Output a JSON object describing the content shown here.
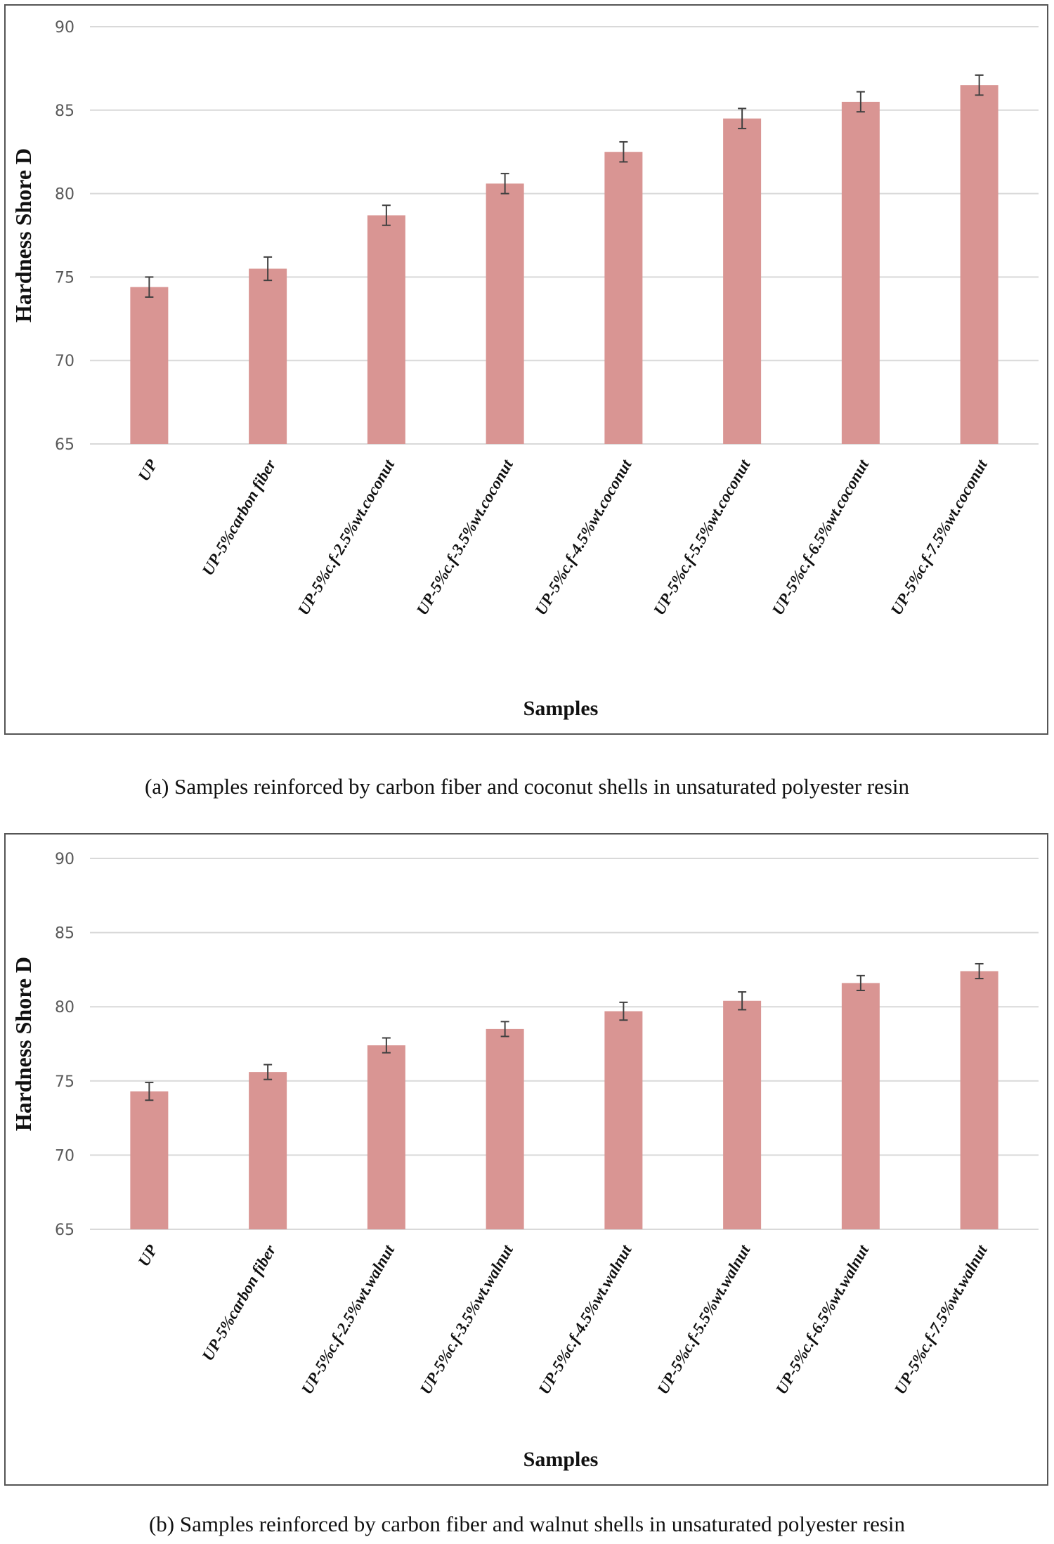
{
  "colors": {
    "bar": "#d99593",
    "grid": "#d9d9d9",
    "error": "#404040",
    "tick": "#595959"
  },
  "chart_data": [
    {
      "type": "bar",
      "title": "",
      "xlabel": "Samples",
      "ylabel": "Hardness Shore D",
      "ylim": [
        65,
        90
      ],
      "yticks": [
        65,
        70,
        75,
        80,
        85,
        90
      ],
      "grid": true,
      "categories": [
        "UP",
        "UP-5%carbon fiber",
        "UP-5%c.f-2.5%wt.coconut",
        "UP-5%c.f-3.5%wt.coconut",
        "UP-5%c.f-4.5%wt.coconut",
        "UP-5%c.f-5.5%wt.coconut",
        "UP-5%c.f-6.5%wt.coconut",
        "UP-5%c.f-7.5%wt.coconut"
      ],
      "values": [
        74.4,
        75.5,
        78.7,
        80.6,
        82.5,
        84.5,
        85.5,
        86.5
      ],
      "errors": [
        0.6,
        0.7,
        0.6,
        0.6,
        0.6,
        0.6,
        0.6,
        0.6
      ],
      "caption_label": "(a)",
      "caption": "Samples reinforced by carbon fiber and coconut shells in unsaturated polyester resin"
    },
    {
      "type": "bar",
      "title": "",
      "xlabel": "Samples",
      "ylabel": "Hardness Shore D",
      "ylim": [
        65,
        90
      ],
      "yticks": [
        65,
        70,
        75,
        80,
        85,
        90
      ],
      "grid": true,
      "categories": [
        "UP",
        "UP-5%carbon fiber",
        "UP-5%c.f-2.5%wt.walnut",
        "UP-5%c.f-3.5%wt.walnut",
        "UP-5%c.f-4.5%wt.walnut",
        "UP-5%c.f-5.5%wt.walnut",
        "UP-5%c.f-6.5%wt.walnut",
        "UP-5%c.f-7.5%wt.walnut"
      ],
      "values": [
        74.3,
        75.6,
        77.4,
        78.5,
        79.7,
        80.4,
        81.6,
        82.4
      ],
      "errors": [
        0.6,
        0.5,
        0.5,
        0.5,
        0.6,
        0.6,
        0.5,
        0.5
      ],
      "caption_label": "(b)",
      "caption": "Samples reinforced by carbon fiber and walnut shells in unsaturated polyester resin"
    }
  ]
}
